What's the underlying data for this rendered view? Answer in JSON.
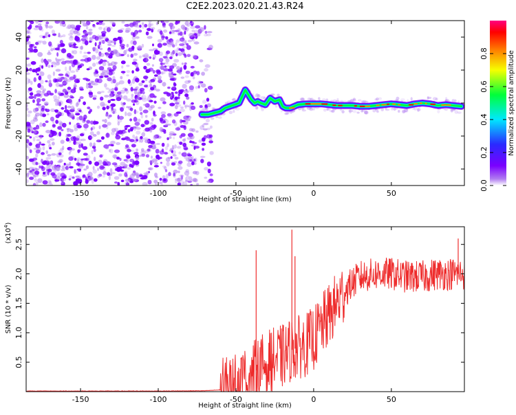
{
  "title": "C2E2.2023.020.21.43.R24",
  "chart_data": [
    {
      "type": "heatmap",
      "xlabel": "Height of straight line (km)",
      "ylabel": "Frequency (Hz)",
      "xlim": [
        -185,
        97
      ],
      "ylim": [
        -50,
        50
      ],
      "x_ticks": [
        -150,
        -100,
        -50,
        0,
        50
      ],
      "y_ticks": [
        -40,
        -20,
        0,
        20,
        40
      ],
      "colorbar": {
        "label": "Normalized spectral amplitude",
        "range": [
          0.0,
          1.0
        ],
        "ticks": [
          0.0,
          0.2,
          0.4,
          0.6,
          0.8
        ],
        "colors": [
          "#ffffff",
          "#b07cf0",
          "#7a00ff",
          "#2a2aff",
          "#00e8ff",
          "#00ff3a",
          "#f6ff00",
          "#ff8000",
          "#ff0000",
          "#ff0080"
        ]
      },
      "noise_region_x": [
        -185,
        -70
      ],
      "signal_ridge": {
        "x": [
          -72,
          -68,
          -64,
          -60,
          -57,
          -54,
          -51,
          -48,
          -46,
          -44,
          -42,
          -40,
          -38,
          -36,
          -34,
          -31,
          -28,
          -25,
          -22,
          -20,
          -18,
          -15,
          -10,
          -5,
          0,
          5,
          10,
          15,
          20,
          25,
          30,
          35,
          40,
          45,
          50,
          55,
          60,
          65,
          70,
          75,
          80,
          85,
          90,
          95
        ],
        "freq_hz": [
          -7,
          -7,
          -6,
          -5,
          -3,
          -2,
          -1,
          0,
          4,
          8,
          5,
          2,
          0,
          1,
          0,
          -1,
          3,
          1,
          2,
          -2,
          -3,
          -3,
          -1,
          -0.5,
          -0.5,
          -0.5,
          -1,
          -1.5,
          -1.5,
          -1.5,
          -2,
          -2,
          -1.5,
          -1,
          -0.5,
          -1,
          -1.5,
          -0.5,
          0,
          -0.5,
          -1.5,
          -1,
          -1.5,
          -2
        ]
      }
    },
    {
      "type": "line",
      "xlabel": "Height of straight line (km)",
      "ylabel": "SNR (10 * v/v)",
      "y_multiplier": "(x10^4)",
      "xlim": [
        -185,
        97
      ],
      "ylim": [
        0,
        2.8
      ],
      "x_ticks": [
        -150,
        -100,
        -50,
        0,
        50
      ],
      "y_ticks": [
        0.5,
        1.0,
        1.5,
        2.0,
        2.5
      ],
      "color": "#ee2c2c",
      "trend": {
        "x": [
          -185,
          -100,
          -70,
          -60,
          -55,
          -50,
          -45,
          -40,
          -35,
          -30,
          -25,
          -20,
          -15,
          -10,
          -5,
          0,
          5,
          10,
          15,
          20,
          25,
          30,
          40,
          50,
          60,
          70,
          80,
          90,
          97
        ],
        "y": [
          0.01,
          0.01,
          0.015,
          0.03,
          0.05,
          0.1,
          0.2,
          0.3,
          0.4,
          0.5,
          0.55,
          0.6,
          0.7,
          0.75,
          0.8,
          0.9,
          1.1,
          1.3,
          1.5,
          1.7,
          1.85,
          1.95,
          2.0,
          2.0,
          1.95,
          1.95,
          2.0,
          2.0,
          2.0
        ]
      },
      "spikes": [
        {
          "x": -37,
          "y": 2.4
        },
        {
          "x": -14,
          "y": 2.75
        },
        {
          "x": -12,
          "y": 2.3
        },
        {
          "x": 93,
          "y": 2.6
        }
      ]
    }
  ]
}
